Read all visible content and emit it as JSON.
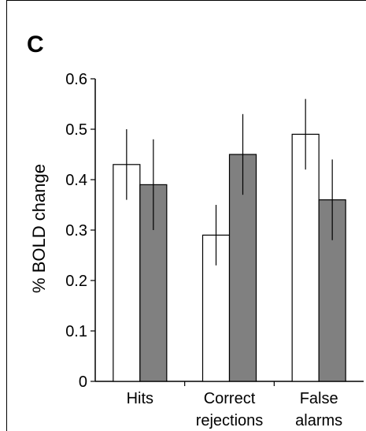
{
  "panel_label": "C",
  "chart_data": {
    "type": "bar",
    "title": "",
    "xlabel": "",
    "ylabel": "% BOLD change",
    "ylim": [
      0,
      0.6
    ],
    "yticks": [
      0,
      0.1,
      0.2,
      0.3,
      0.4,
      0.5,
      0.6
    ],
    "ytick_labels": [
      "0",
      "0.1",
      "0.2",
      "0.3",
      "0.4",
      "0.5",
      "0.6"
    ],
    "categories": [
      "Hits",
      "Correct rejections",
      "False alarms"
    ],
    "category_label_lines": [
      [
        "Hits"
      ],
      [
        "Correct",
        "rejections"
      ],
      [
        "False",
        "alarms"
      ]
    ],
    "grid": false,
    "legend": "none",
    "series": [
      {
        "color": "#ffffff",
        "values": [
          0.43,
          0.29,
          0.49
        ],
        "error_low": [
          0.36,
          0.23,
          0.42
        ],
        "error_high": [
          0.5,
          0.35,
          0.56
        ]
      },
      {
        "color": "#808080",
        "values": [
          0.39,
          0.45,
          0.36
        ],
        "error_low": [
          0.3,
          0.37,
          0.28
        ],
        "error_high": [
          0.48,
          0.53,
          0.44
        ]
      }
    ]
  }
}
